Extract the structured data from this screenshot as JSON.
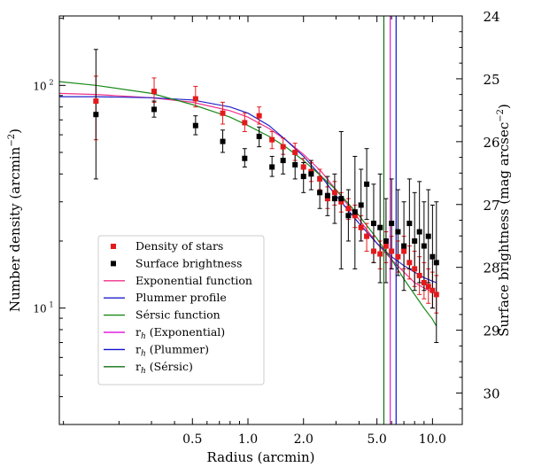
{
  "chart_data": {
    "type": "scatter",
    "xlabel": "Radius (arcmin)",
    "ylabel_left": "Number density (arcmin",
    "ylabel_left_sup": "−2",
    "ylabel_left_tail": ")",
    "ylabel_right": "Surface brightness (mag arcsec",
    "ylabel_right_sup": "−2",
    "ylabel_right_tail": ")",
    "x_scale": "log",
    "y_scale_left": "log",
    "xlim": [
      0.095,
      14.5
    ],
    "ylim_left": [
      3.0,
      205
    ],
    "ylim_right": [
      24,
      30.5
    ],
    "x_ticks": [
      {
        "value": 0.5,
        "label": "0.5"
      },
      {
        "value": 1.0,
        "label": "1.0"
      },
      {
        "value": 2.0,
        "label": "2.0"
      },
      {
        "value": 5.0,
        "label": "5.0"
      },
      {
        "value": 10.0,
        "label": "10.0"
      }
    ],
    "y_ticks_left": [
      {
        "value": 100,
        "label": "10",
        "sup": "2"
      },
      {
        "value": 10,
        "label": "10",
        "sup": "1"
      }
    ],
    "y_ticks_right": [
      {
        "value": 24,
        "label": "24"
      },
      {
        "value": 25,
        "label": "25"
      },
      {
        "value": 26,
        "label": "26"
      },
      {
        "value": 27,
        "label": "27"
      },
      {
        "value": 28,
        "label": "28"
      },
      {
        "value": 29,
        "label": "29"
      },
      {
        "value": 30,
        "label": "30"
      }
    ],
    "legend": {
      "position": "lower-left",
      "entries": [
        {
          "label": "Density of stars",
          "marker": "square",
          "color": "#e31a1c"
        },
        {
          "label": "Surface brightness",
          "marker": "square",
          "color": "#000000"
        },
        {
          "label": "Exponential function",
          "marker": "line",
          "color": "#f0308a"
        },
        {
          "label": "Plummer profile",
          "marker": "line",
          "color": "#2020c8"
        },
        {
          "label": "Sérsic function",
          "marker": "line",
          "color": "#1a8a1a"
        },
        {
          "label": "r",
          "sub": "h",
          "tail": " (Exponential)",
          "marker": "line",
          "color": "#e020e0"
        },
        {
          "label": "r",
          "sub": "h",
          "tail": " (Plummer)",
          "marker": "line",
          "color": "#1010d0"
        },
        {
          "label": "r",
          "sub": "h",
          "tail": " (Sérsic)",
          "marker": "line",
          "color": "#107010"
        }
      ]
    },
    "series": [
      {
        "name": "Density of stars",
        "color": "#e31a1c",
        "points": [
          {
            "x": 0.15,
            "y": 85,
            "yerr": [
              57,
              110
            ]
          },
          {
            "x": 0.31,
            "y": 94,
            "yerr": [
              84,
              108
            ]
          },
          {
            "x": 0.52,
            "y": 87,
            "yerr": [
              80,
              99
            ]
          },
          {
            "x": 0.73,
            "y": 75,
            "yerr": [
              67,
              84
            ]
          },
          {
            "x": 0.96,
            "y": 68,
            "yerr": [
              62,
              75
            ]
          },
          {
            "x": 1.15,
            "y": 73,
            "yerr": [
              67,
              80
            ]
          },
          {
            "x": 1.35,
            "y": 57,
            "yerr": [
              52,
              62
            ]
          },
          {
            "x": 1.55,
            "y": 53,
            "yerr": [
              49,
              58
            ]
          },
          {
            "x": 1.8,
            "y": 50,
            "yerr": [
              46,
              55
            ]
          },
          {
            "x": 2.0,
            "y": 43,
            "yerr": [
              39,
              47
            ]
          },
          {
            "x": 2.2,
            "y": 41,
            "yerr": [
              37,
              45
            ]
          },
          {
            "x": 2.45,
            "y": 38,
            "yerr": [
              34,
              42
            ]
          },
          {
            "x": 2.7,
            "y": 31,
            "yerr": [
              28,
              35
            ]
          },
          {
            "x": 2.95,
            "y": 33,
            "yerr": [
              29,
              37
            ]
          },
          {
            "x": 3.2,
            "y": 30,
            "yerr": [
              27,
              33
            ]
          },
          {
            "x": 3.5,
            "y": 28,
            "yerr": [
              25,
              31
            ]
          },
          {
            "x": 3.8,
            "y": 26,
            "yerr": [
              23,
              29
            ]
          },
          {
            "x": 4.1,
            "y": 23,
            "yerr": [
              20,
              26
            ]
          },
          {
            "x": 4.4,
            "y": 21,
            "yerr": [
              18,
              24
            ]
          },
          {
            "x": 4.8,
            "y": 18,
            "yerr": [
              16,
              21
            ]
          },
          {
            "x": 5.2,
            "y": 17.5,
            "yerr": [
              15,
              20
            ]
          },
          {
            "x": 5.6,
            "y": 19,
            "yerr": [
              16,
              22
            ]
          },
          {
            "x": 6.0,
            "y": 18,
            "yerr": [
              15,
              21
            ]
          },
          {
            "x": 6.5,
            "y": 17,
            "yerr": [
              14.5,
              20
            ]
          },
          {
            "x": 7.0,
            "y": 18,
            "yerr": [
              15,
              21
            ]
          },
          {
            "x": 7.5,
            "y": 16,
            "yerr": [
              13.5,
              19
            ]
          },
          {
            "x": 8.0,
            "y": 15,
            "yerr": [
              12.5,
              18
            ]
          },
          {
            "x": 8.5,
            "y": 14,
            "yerr": [
              11.5,
              17
            ]
          },
          {
            "x": 9.0,
            "y": 13,
            "yerr": [
              11,
              16
            ]
          },
          {
            "x": 9.5,
            "y": 12.5,
            "yerr": [
              10.5,
              15
            ]
          },
          {
            "x": 10.0,
            "y": 12,
            "yerr": [
              10,
              14.5
            ]
          },
          {
            "x": 10.5,
            "y": 11.5,
            "yerr": [
              9.5,
              14
            ]
          }
        ]
      },
      {
        "name": "Surface brightness",
        "color": "#000000",
        "points": [
          {
            "x": 0.15,
            "y": 74,
            "yerr": [
              38,
              145
            ]
          },
          {
            "x": 0.31,
            "y": 78,
            "yerr": [
              72,
              85
            ]
          },
          {
            "x": 0.52,
            "y": 66,
            "yerr": [
              60,
              73
            ]
          },
          {
            "x": 0.73,
            "y": 56,
            "yerr": [
              50,
              63
            ]
          },
          {
            "x": 0.96,
            "y": 47,
            "yerr": [
              43,
              52
            ]
          },
          {
            "x": 1.15,
            "y": 59,
            "yerr": [
              53,
              65
            ]
          },
          {
            "x": 1.35,
            "y": 43,
            "yerr": [
              39,
              48
            ]
          },
          {
            "x": 1.55,
            "y": 46,
            "yerr": [
              40,
              52
            ]
          },
          {
            "x": 1.8,
            "y": 44,
            "yerr": [
              38,
              50
            ]
          },
          {
            "x": 2.0,
            "y": 39,
            "yerr": [
              33,
              45
            ]
          },
          {
            "x": 2.2,
            "y": 40,
            "yerr": [
              34,
              46
            ]
          },
          {
            "x": 2.45,
            "y": 33,
            "yerr": [
              28,
              39
            ]
          },
          {
            "x": 2.7,
            "y": 32,
            "yerr": [
              26,
              39
            ]
          },
          {
            "x": 2.95,
            "y": 31,
            "yerr": [
              24,
              40
            ]
          },
          {
            "x": 3.2,
            "y": 31,
            "yerr": [
              15,
              62
            ]
          },
          {
            "x": 3.5,
            "y": 26,
            "yerr": [
              20,
              34
            ]
          },
          {
            "x": 3.8,
            "y": 27,
            "yerr": [
              15,
              48
            ]
          },
          {
            "x": 4.1,
            "y": 29,
            "yerr": [
              20,
              42
            ]
          },
          {
            "x": 4.4,
            "y": 36,
            "yerr": [
              25,
              52
            ]
          },
          {
            "x": 4.8,
            "y": 24,
            "yerr": [
              16,
              36
            ]
          },
          {
            "x": 5.2,
            "y": 23,
            "yerr": [
              13,
              40
            ]
          },
          {
            "x": 5.6,
            "y": 20,
            "yerr": [
              13,
              31
            ]
          },
          {
            "x": 6.0,
            "y": 24,
            "yerr": [
              15,
              38
            ]
          },
          {
            "x": 6.5,
            "y": 22,
            "yerr": [
              14,
              34
            ]
          },
          {
            "x": 7.0,
            "y": 19,
            "yerr": [
              12,
              30
            ]
          },
          {
            "x": 7.5,
            "y": 24,
            "yerr": [
              15,
              38
            ]
          },
          {
            "x": 8.0,
            "y": 20,
            "yerr": [
              12,
              33
            ]
          },
          {
            "x": 8.5,
            "y": 22,
            "yerr": [
              13,
              37
            ]
          },
          {
            "x": 9.0,
            "y": 19,
            "yerr": [
              12,
              30
            ]
          },
          {
            "x": 9.5,
            "y": 21,
            "yerr": [
              13,
              34
            ]
          },
          {
            "x": 10.0,
            "y": 17,
            "yerr": [
              10,
              29
            ]
          },
          {
            "x": 10.5,
            "y": 16,
            "yerr": [
              7,
              30
            ]
          }
        ]
      },
      {
        "name": "Exponential function",
        "type": "line",
        "color": "#f0308a",
        "x": [
          0.095,
          0.15,
          0.3,
          0.5,
          0.8,
          1.0,
          1.3,
          1.6,
          2.0,
          2.5,
          3.0,
          4.0,
          5.0,
          6.0,
          7.0,
          8.0,
          9.0,
          10.0,
          10.5
        ],
        "y": [
          92,
          91,
          88,
          84,
          77,
          72,
          64,
          57,
          49,
          41,
          34,
          25,
          19.5,
          16.5,
          14.5,
          13,
          12.3,
          11.8,
          11.6
        ]
      },
      {
        "name": "Plummer profile",
        "type": "line",
        "color": "#2020c8",
        "x": [
          0.095,
          0.15,
          0.3,
          0.5,
          0.8,
          1.0,
          1.3,
          1.6,
          2.0,
          2.5,
          3.0,
          4.0,
          5.0,
          6.0,
          7.0,
          8.0,
          9.0,
          10.0,
          10.5
        ],
        "y": [
          89,
          89,
          88,
          86,
          80,
          75,
          66,
          57,
          48,
          39,
          32,
          24,
          19.5,
          17,
          15.5,
          14.5,
          13.7,
          13.2,
          13
        ]
      },
      {
        "name": "Sérsic function",
        "type": "line",
        "color": "#1a8a1a",
        "x": [
          0.095,
          0.15,
          0.3,
          0.5,
          0.8,
          1.0,
          1.3,
          1.6,
          2.0,
          2.5,
          3.0,
          4.0,
          5.0,
          6.0,
          7.0,
          8.0,
          9.0,
          10.0,
          10.5
        ],
        "y": [
          104,
          100,
          92,
          82,
          72,
          66,
          59,
          53,
          46,
          39,
          34,
          26,
          20.5,
          16.5,
          13.5,
          11.5,
          10,
          8.9,
          8.3
        ]
      }
    ],
    "vlines": [
      {
        "name": "rh (Exponential)",
        "x": 5.9,
        "color": "#e020e0"
      },
      {
        "name": "rh (Plummer)",
        "x": 6.35,
        "color": "#1010d0"
      },
      {
        "name": "rh (Sérsic)",
        "x": 5.45,
        "color": "#107010"
      }
    ]
  }
}
